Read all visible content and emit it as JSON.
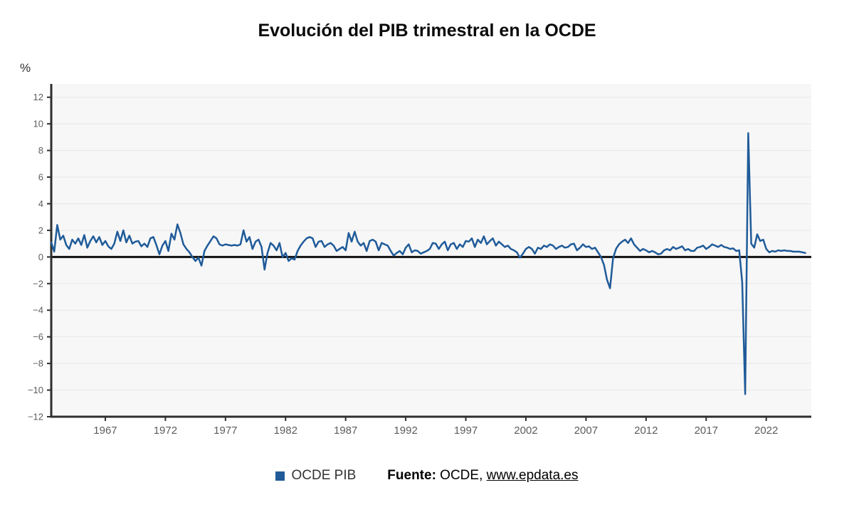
{
  "chart_data": {
    "type": "line",
    "title": "Evolución del PIB trimestral en la OCDE",
    "ylabel": "%",
    "xlabel": "",
    "ylim": [
      -12,
      13
    ],
    "xlim": [
      1962.5,
      2025.75
    ],
    "y_ticks": [
      -12,
      -10,
      -8,
      -6,
      -4,
      -2,
      0,
      2,
      4,
      6,
      8,
      10,
      12
    ],
    "x_ticks": [
      1967,
      1972,
      1977,
      1982,
      1987,
      1992,
      1997,
      2002,
      2007,
      2012,
      2017,
      2022
    ],
    "grid": "horizontal",
    "zero_line": true,
    "legend_position": "bottom-center",
    "colors": {
      "plot_bg": "#f7f7f7",
      "grid": "#e7e7e7",
      "axis": "#2e2e2e",
      "zero_line": "#111111",
      "tick_label": "#5c5c5c",
      "series": "#1f5b99"
    },
    "series": [
      {
        "name": "OCDE PIB",
        "color": "#1f5b99",
        "units": "quarterly GDP growth, %",
        "start_year": 1962.5,
        "step_years": 0.25,
        "values": [
          1.1,
          0.4,
          2.4,
          1.3,
          1.6,
          0.9,
          0.6,
          1.3,
          1.0,
          1.4,
          0.9,
          1.65,
          0.7,
          1.2,
          1.55,
          1.1,
          1.5,
          0.9,
          1.2,
          0.8,
          0.6,
          1.0,
          1.9,
          1.2,
          2.0,
          1.1,
          1.6,
          1.0,
          1.15,
          1.2,
          0.8,
          1.0,
          0.75,
          1.4,
          1.5,
          0.9,
          0.2,
          0.85,
          1.2,
          0.45,
          1.75,
          1.3,
          2.45,
          1.8,
          0.95,
          0.6,
          0.35,
          0.0,
          -0.3,
          -0.05,
          -0.65,
          0.45,
          0.85,
          1.2,
          1.55,
          1.4,
          0.95,
          0.85,
          0.95,
          0.9,
          0.85,
          0.9,
          0.85,
          0.95,
          2.0,
          1.15,
          1.5,
          0.6,
          1.15,
          1.3,
          0.75,
          -0.95,
          0.3,
          1.05,
          0.85,
          0.5,
          1.05,
          0.0,
          0.3,
          -0.3,
          -0.1,
          -0.2,
          0.45,
          0.85,
          1.15,
          1.4,
          1.5,
          1.4,
          0.75,
          1.15,
          1.2,
          0.75,
          0.95,
          1.05,
          0.85,
          0.45,
          0.6,
          0.75,
          0.5,
          1.8,
          1.15,
          1.9,
          1.15,
          0.85,
          1.05,
          0.45,
          1.2,
          1.3,
          1.15,
          0.5,
          1.05,
          0.95,
          0.85,
          0.45,
          0.1,
          0.3,
          0.45,
          0.2,
          0.7,
          0.95,
          0.35,
          0.5,
          0.45,
          0.25,
          0.35,
          0.45,
          0.6,
          1.05,
          1.0,
          0.6,
          0.95,
          1.15,
          0.5,
          0.95,
          1.05,
          0.6,
          0.95,
          0.75,
          1.2,
          1.15,
          1.4,
          0.75,
          1.3,
          1.05,
          1.55,
          0.95,
          1.2,
          1.4,
          0.85,
          1.15,
          0.95,
          0.75,
          0.85,
          0.6,
          0.5,
          0.35,
          -0.05,
          0.25,
          0.6,
          0.75,
          0.6,
          0.25,
          0.7,
          0.6,
          0.85,
          0.75,
          0.95,
          0.85,
          0.6,
          0.75,
          0.85,
          0.7,
          0.75,
          0.95,
          1.0,
          0.5,
          0.7,
          0.95,
          0.75,
          0.8,
          0.6,
          0.7,
          0.35,
          0.0,
          -0.6,
          -1.7,
          -2.35,
          -0.1,
          0.6,
          0.95,
          1.15,
          1.3,
          1.05,
          1.4,
          0.95,
          0.7,
          0.45,
          0.6,
          0.5,
          0.35,
          0.45,
          0.35,
          0.2,
          0.25,
          0.5,
          0.6,
          0.5,
          0.75,
          0.6,
          0.7,
          0.8,
          0.5,
          0.6,
          0.45,
          0.45,
          0.7,
          0.75,
          0.85,
          0.6,
          0.75,
          0.95,
          0.85,
          0.75,
          0.9,
          0.75,
          0.7,
          0.6,
          0.65,
          0.45,
          0.5,
          -1.9,
          -10.3,
          9.3,
          1.0,
          0.7,
          1.7,
          1.2,
          1.3,
          0.6,
          0.35,
          0.45,
          0.4,
          0.5,
          0.45,
          0.5,
          0.45,
          0.45,
          0.4,
          0.4,
          0.4,
          0.35,
          0.3
        ]
      }
    ]
  },
  "legend": {
    "series_label": "OCDE PIB"
  },
  "source": {
    "prefix": "Fuente:",
    "text": " OCDE, ",
    "link": "www.epdata.es"
  }
}
